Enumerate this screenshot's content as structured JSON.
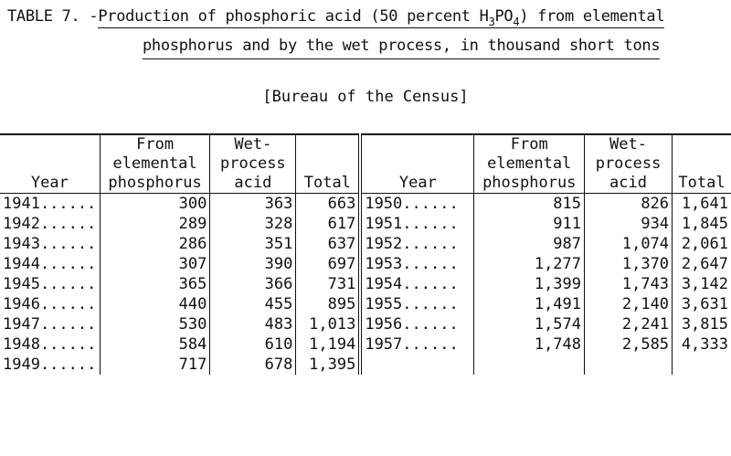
{
  "title": {
    "prefix": "TABLE 7. - ",
    "line1_main": "Production of phosphoric acid (50 percent H",
    "formula_sub1": "3",
    "formula_mid": "PO",
    "formula_sub2": "4",
    "line1_end": ") from elemental",
    "line2": "phosphorus and by the wet process, in thousand short tons"
  },
  "source": "[Bureau of the Census]",
  "columns": {
    "year": "Year",
    "elemental": [
      "From",
      "elemental",
      "phosphorus"
    ],
    "wet": [
      "Wet-",
      "process",
      "acid"
    ],
    "total": "Total"
  },
  "left_rows": [
    {
      "year": "1941......",
      "elemental": "300",
      "wet": "363",
      "total": "663"
    },
    {
      "year": "1942......",
      "elemental": "289",
      "wet": "328",
      "total": "617"
    },
    {
      "year": "1943......",
      "elemental": "286",
      "wet": "351",
      "total": "637"
    },
    {
      "year": "1944......",
      "elemental": "307",
      "wet": "390",
      "total": "697"
    },
    {
      "year": "1945......",
      "elemental": "365",
      "wet": "366",
      "total": "731"
    },
    {
      "year": "1946......",
      "elemental": "440",
      "wet": "455",
      "total": "895"
    },
    {
      "year": "1947......",
      "elemental": "530",
      "wet": "483",
      "total": "1,013"
    },
    {
      "year": "1948......",
      "elemental": "584",
      "wet": "610",
      "total": "1,194"
    },
    {
      "year": "1949......",
      "elemental": "717",
      "wet": "678",
      "total": "1,395"
    }
  ],
  "right_rows": [
    {
      "year": "1950......",
      "elemental": "815",
      "wet": "826",
      "total": "1,641"
    },
    {
      "year": "1951......",
      "elemental": "911",
      "wet": "934",
      "total": "1,845"
    },
    {
      "year": "1952......",
      "elemental": "987",
      "wet": "1,074",
      "total": "2,061"
    },
    {
      "year": "1953......",
      "elemental": "1,277",
      "wet": "1,370",
      "total": "2,647"
    },
    {
      "year": "1954......",
      "elemental": "1,399",
      "wet": "1,743",
      "total": "3,142"
    },
    {
      "year": "1955......",
      "elemental": "1,491",
      "wet": "2,140",
      "total": "3,631"
    },
    {
      "year": "1956......",
      "elemental": "1,574",
      "wet": "2,241",
      "total": "3,815"
    },
    {
      "year": "1957......",
      "elemental": "1,748",
      "wet": "2,585",
      "total": "4,333"
    },
    {
      "year": "",
      "elemental": "",
      "wet": "",
      "total": ""
    }
  ]
}
